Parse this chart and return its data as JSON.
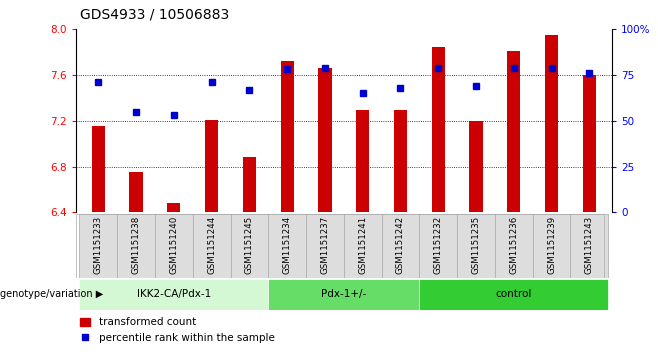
{
  "title": "GDS4933 / 10506883",
  "samples": [
    "GSM1151233",
    "GSM1151238",
    "GSM1151240",
    "GSM1151244",
    "GSM1151245",
    "GSM1151234",
    "GSM1151237",
    "GSM1151241",
    "GSM1151242",
    "GSM1151232",
    "GSM1151235",
    "GSM1151236",
    "GSM1151239",
    "GSM1151243"
  ],
  "bar_values": [
    7.15,
    6.75,
    6.48,
    7.21,
    6.88,
    7.72,
    7.66,
    7.29,
    7.29,
    7.84,
    7.2,
    7.81,
    7.95,
    7.6
  ],
  "percentile_values": [
    71,
    55,
    53,
    71,
    67,
    78,
    79,
    65,
    68,
    79,
    69,
    79,
    79,
    76
  ],
  "groups": [
    {
      "label": "IKK2-CA/Pdx-1",
      "start": 0,
      "end": 5,
      "color": "#d4f7d4"
    },
    {
      "label": "Pdx-1+/-",
      "start": 5,
      "end": 9,
      "color": "#66dd66"
    },
    {
      "label": "control",
      "start": 9,
      "end": 14,
      "color": "#33cc33"
    }
  ],
  "ylim_left": [
    6.4,
    8.0
  ],
  "ylim_right": [
    0,
    100
  ],
  "yticks_left": [
    6.4,
    6.8,
    7.2,
    7.6,
    8.0
  ],
  "yticks_right": [
    0,
    25,
    50,
    75,
    100
  ],
  "ytick_labels_right": [
    "0",
    "25",
    "50",
    "75",
    "100%"
  ],
  "bar_color": "#cc0000",
  "dot_color": "#0000cc",
  "bar_bottom": 6.4,
  "grid_lines": [
    6.8,
    7.2,
    7.6
  ],
  "legend_label_bar": "transformed count",
  "legend_label_dot": "percentile rank within the sample",
  "group_label": "genotype/variation",
  "title_fontsize": 10,
  "tick_fontsize": 7.5,
  "label_fontsize": 7.5,
  "bar_width": 0.35
}
